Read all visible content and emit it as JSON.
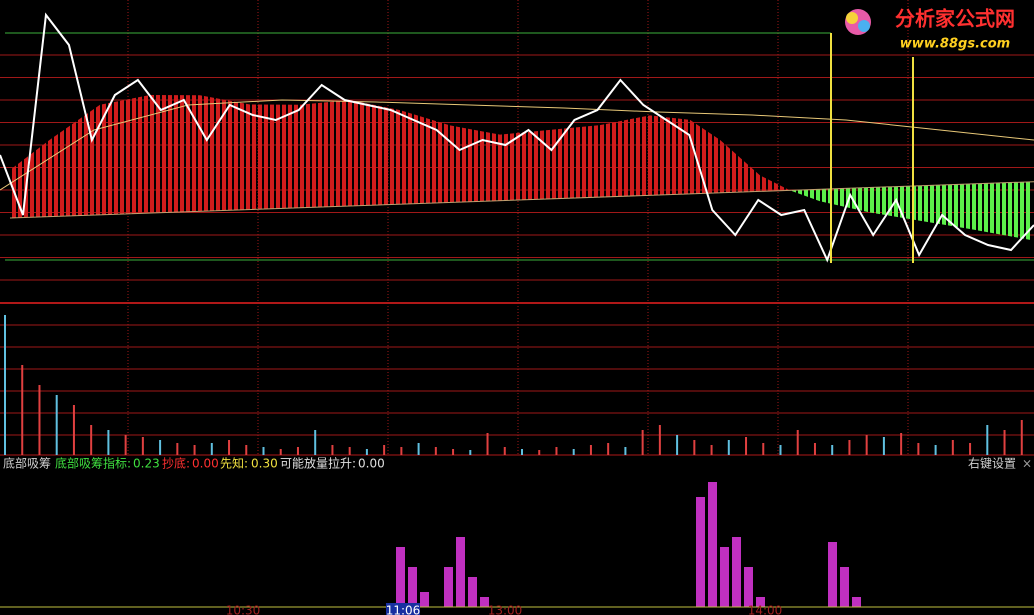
{
  "watermark": {
    "title": "分析家公式网",
    "url": "www.88gs.com"
  },
  "indicator": {
    "name": "底部吸筹",
    "items": [
      {
        "label": "底部吸筹指标:",
        "value": "0.23"
      },
      {
        "label": "抄底:",
        "value": "0.00"
      },
      {
        "label": "先知:",
        "value": "0.30"
      },
      {
        "label": "可能放量拉升:",
        "value": "0.00"
      }
    ],
    "settings": "右键设置",
    "close": "×"
  },
  "time_labels": [
    "10:30",
    "11:06",
    "13:00",
    "14:00"
  ],
  "price": [
    145,
    85,
    285,
    255,
    160,
    205,
    220,
    190,
    200,
    160,
    195,
    185,
    180,
    190,
    215,
    200,
    195,
    190,
    180,
    170,
    150,
    160,
    155,
    170,
    150,
    180,
    190,
    220,
    195,
    180,
    165,
    90,
    65,
    100,
    85,
    90,
    40,
    105,
    65,
    100,
    45,
    85,
    65,
    55,
    50,
    75
  ],
  "average": [
    110,
    170,
    195,
    200,
    198,
    195,
    192,
    188,
    185,
    180,
    170,
    160
  ],
  "histogram": {
    "x": [
      10,
      50,
      100,
      150,
      200,
      250,
      300,
      350,
      400,
      450,
      500,
      550,
      600,
      650,
      690,
      720,
      760,
      790,
      820,
      870,
      920,
      970,
      1030
    ],
    "values": [
      48,
      77,
      110,
      118,
      116,
      105,
      103,
      106,
      94,
      77,
      66,
      69,
      72,
      80,
      74,
      53,
      16,
      0,
      -12,
      -25,
      -35,
      -45,
      -58
    ]
  },
  "volume": [
    140,
    90,
    70,
    60,
    50,
    30,
    25,
    20,
    18,
    15,
    12,
    10,
    12,
    15,
    10,
    8,
    6,
    8,
    25,
    10,
    8,
    6,
    10,
    8,
    12,
    8,
    6,
    5,
    22,
    8,
    6,
    5,
    8,
    6,
    10,
    12,
    8,
    25,
    30,
    20,
    15,
    10,
    15,
    18,
    12,
    10,
    25,
    12,
    10,
    15,
    20,
    18,
    22,
    12,
    10,
    15,
    12,
    30,
    25,
    35
  ],
  "signal": [
    0,
    0,
    0,
    0,
    0,
    0,
    0,
    0,
    0,
    0,
    0,
    0,
    0,
    0,
    0,
    0,
    0,
    0,
    0,
    0,
    0,
    0,
    0,
    0,
    0,
    0,
    0,
    0,
    0,
    0,
    0,
    0,
    0,
    60,
    40,
    15,
    0,
    40,
    70,
    30,
    10,
    0,
    0,
    0,
    0,
    0,
    0,
    0,
    0,
    0,
    0,
    0,
    0,
    0,
    0,
    0,
    0,
    0,
    110,
    125,
    60,
    70,
    40,
    10,
    0,
    0,
    0,
    0,
    0,
    65,
    40,
    10,
    0,
    0,
    0,
    0,
    0,
    0,
    0,
    0,
    0,
    0,
    0,
    0,
    0,
    0
  ]
}
